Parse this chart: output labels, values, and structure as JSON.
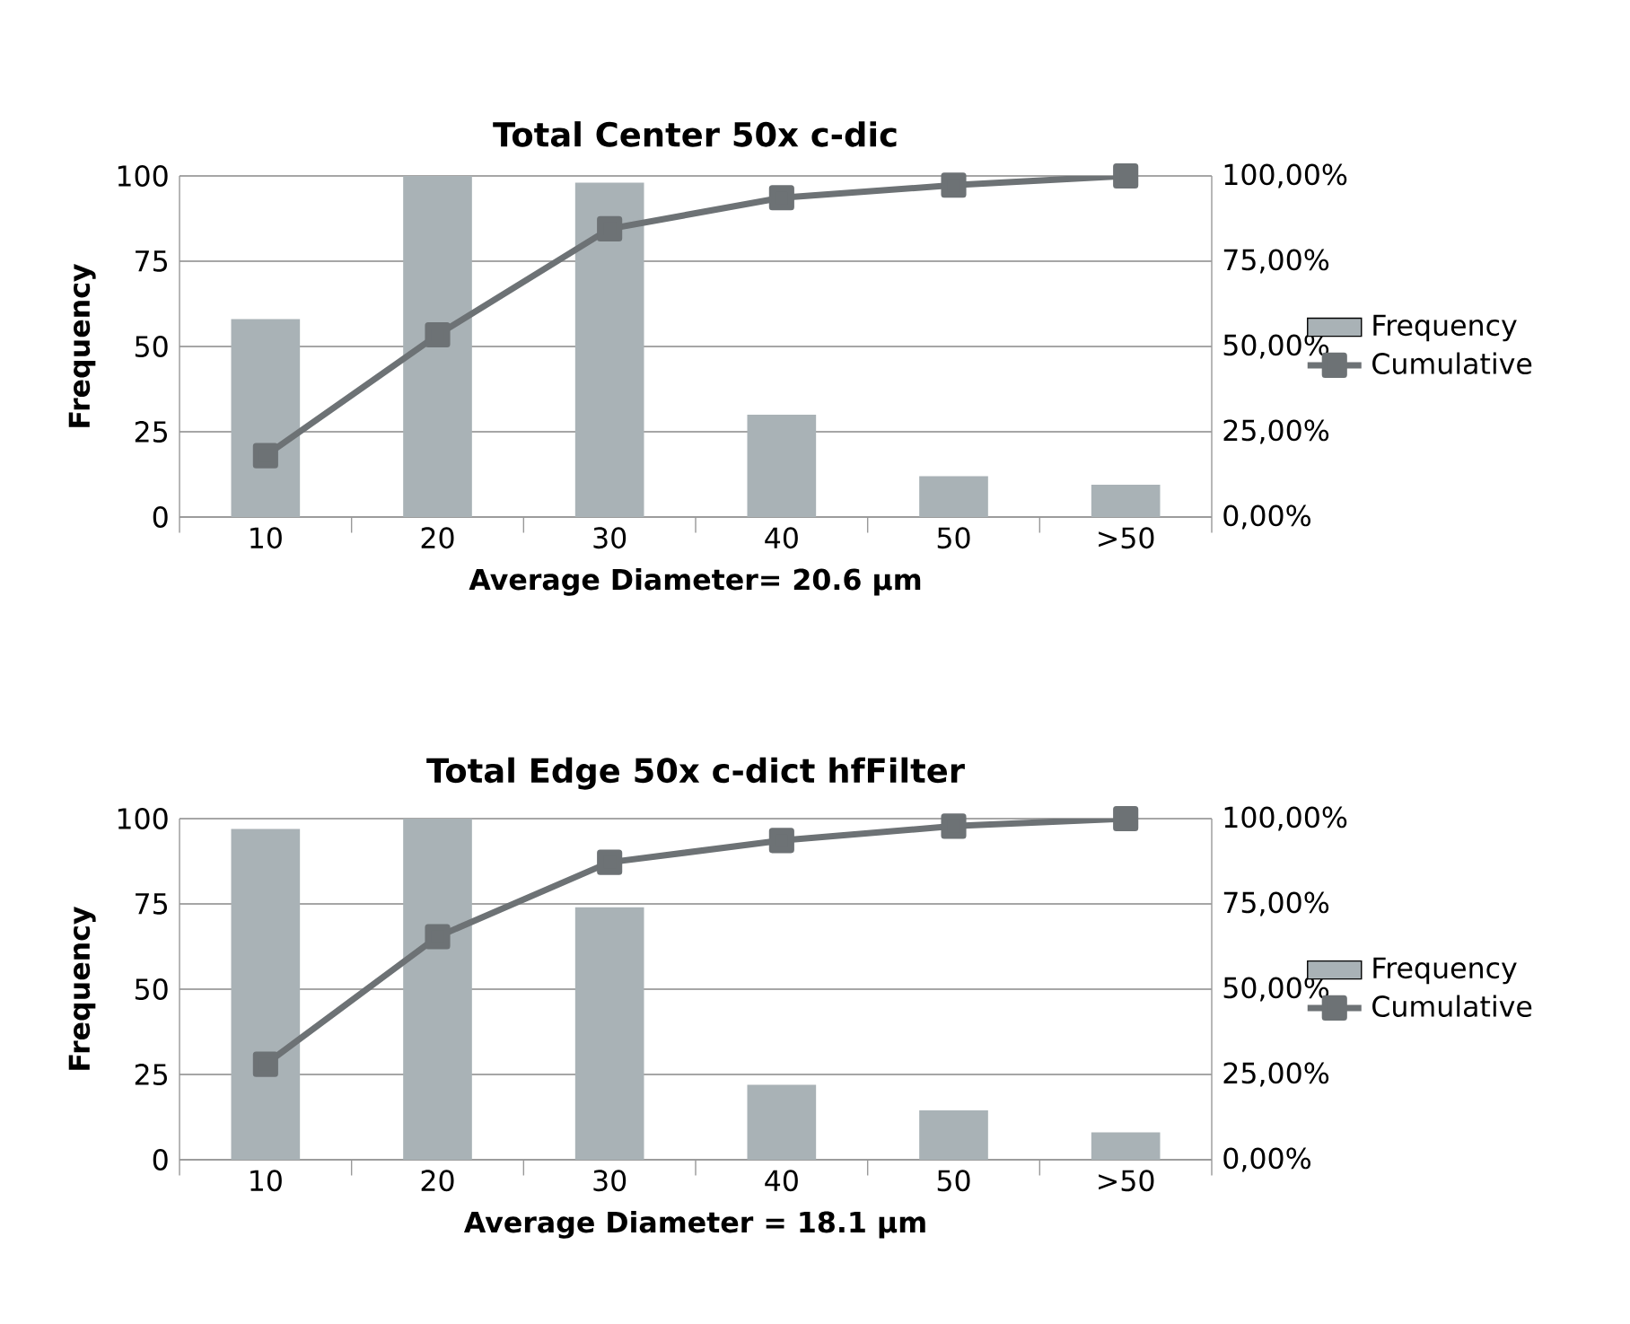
{
  "chart_data": [
    {
      "type": "bar",
      "title": "Total Center 50x c-dic",
      "xlabel": "Average Diameter= 20.6 µm",
      "ylabel": "Frequency",
      "categories": [
        "10",
        "20",
        "30",
        "40",
        "50",
        ">50"
      ],
      "series": [
        {
          "name": "Frequency",
          "color": "#a9b2b6",
          "values": [
            58,
            100,
            98,
            30,
            12,
            9.5
          ]
        },
        {
          "name": "Cumulative",
          "type": "line",
          "axis": "y2",
          "color": "#6d7275",
          "values": [
            18,
            53.4,
            84.5,
            93.6,
            97.3,
            100
          ]
        }
      ],
      "ylim": [
        0,
        100
      ],
      "yticks": [
        0,
        25,
        50,
        75,
        100
      ],
      "y2lim": [
        0,
        100
      ],
      "y2ticks": [
        {
          "value": 0,
          "label": "0,00%"
        },
        {
          "value": 25,
          "label": "25,00%"
        },
        {
          "value": 50,
          "label": "50,00%"
        },
        {
          "value": 75,
          "label": "75,00%"
        },
        {
          "value": 100,
          "label": "100,00%"
        }
      ],
      "grid": "y",
      "legend": "right",
      "marker": "square"
    },
    {
      "type": "bar",
      "title": "Total Edge 50x c-dict hfFilter",
      "xlabel": "Average Diameter = 18.1 µm",
      "ylabel": "Frequency",
      "categories": [
        "10",
        "20",
        "30",
        "40",
        "50",
        ">50"
      ],
      "series": [
        {
          "name": "Frequency",
          "color": "#a9b2b6",
          "values": [
            97,
            100,
            74,
            22,
            14.5,
            8
          ]
        },
        {
          "name": "Cumulative",
          "type": "line",
          "axis": "y2",
          "color": "#6d7275",
          "values": [
            28,
            65.4,
            87.2,
            93.6,
            97.8,
            100
          ]
        }
      ],
      "ylim": [
        0,
        100
      ],
      "yticks": [
        0,
        25,
        50,
        75,
        100
      ],
      "y2lim": [
        0,
        100
      ],
      "y2ticks": [
        {
          "value": 0,
          "label": "0,00%"
        },
        {
          "value": 25,
          "label": "25,00%"
        },
        {
          "value": 50,
          "label": "50,00%"
        },
        {
          "value": 75,
          "label": "75,00%"
        },
        {
          "value": 100,
          "label": "100,00%"
        }
      ],
      "grid": "y",
      "legend": "right",
      "marker": "square"
    }
  ]
}
